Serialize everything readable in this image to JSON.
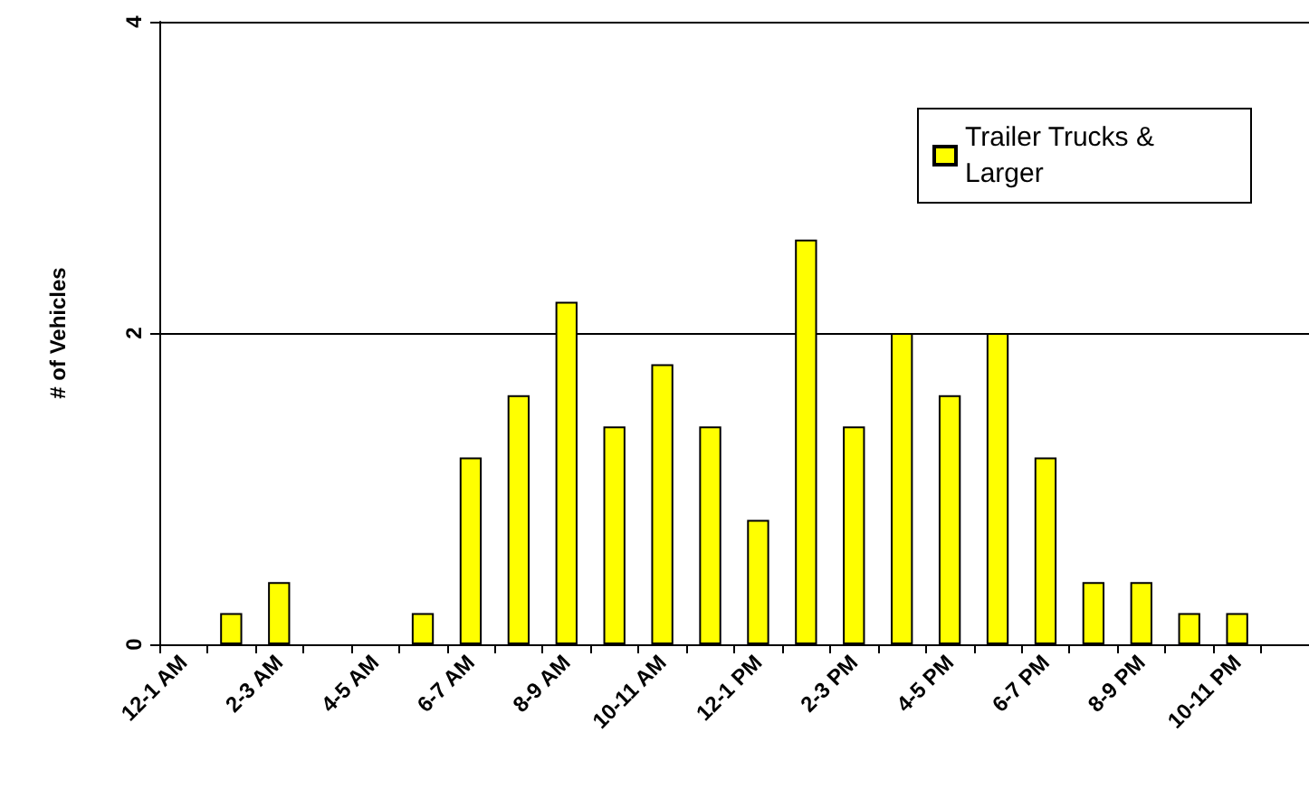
{
  "chart_data": {
    "type": "bar",
    "ylabel": "# of Vehicles",
    "categories": [
      "12-1 AM",
      null,
      "2-3 AM",
      null,
      "4-5 AM",
      null,
      "6-7 AM",
      null,
      "8-9 AM",
      null,
      "10-11 AM",
      null,
      "12-1 PM",
      null,
      "2-3 PM",
      null,
      "4-5 PM",
      null,
      "6-7 PM",
      null,
      "8-9 PM",
      null,
      "10-11 PM",
      null
    ],
    "series": [
      {
        "name": "Trailer Trucks & Larger",
        "color": "#ffff00",
        "values": [
          0,
          0.2,
          0.4,
          0,
          0,
          0.2,
          1.2,
          1.6,
          2.2,
          1.4,
          1.8,
          1.4,
          0.8,
          2.6,
          1.4,
          2.0,
          1.6,
          2.0,
          1.2,
          0.4,
          0.4,
          0.2,
          0.2,
          0
        ]
      }
    ],
    "ylim": [
      0,
      4
    ],
    "yticks": [
      0,
      2,
      4
    ],
    "grid": "y",
    "legend": "top right"
  }
}
